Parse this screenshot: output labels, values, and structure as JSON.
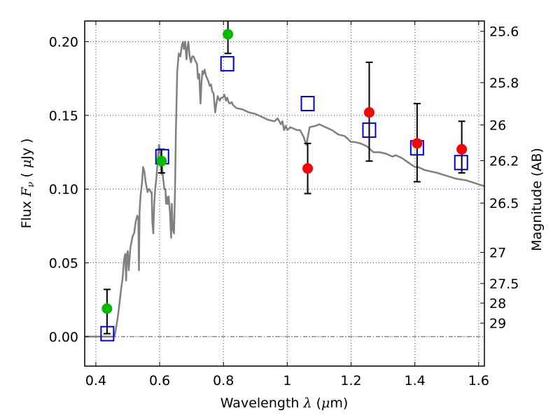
{
  "chart_data": {
    "type": "scatter",
    "title": "",
    "xlabel": "Wavelength  λ (μm)",
    "xlabel_parts": {
      "prefix": "Wavelength  ",
      "symbol": "λ",
      "suffix": " (",
      "mu": "μ",
      "unit": "m)"
    },
    "ylabel": "Flux  F_ν  ( μJy )",
    "ylabel_parts": {
      "prefix": "Flux  ",
      "symbol": "F",
      "sub": "ν",
      "open": "  ( ",
      "mu": "μ",
      "unit": "Jy )"
    },
    "y2label": "Magnitude (AB)",
    "xlim": [
      0.365,
      1.618
    ],
    "ylim": [
      -0.02,
      0.214
    ],
    "grid": true,
    "x_ticks": [
      {
        "value": 0.4,
        "label": "0.4"
      },
      {
        "value": 0.6,
        "label": "0.6"
      },
      {
        "value": 0.8,
        "label": "0.8"
      },
      {
        "value": 1.0,
        "label": "1"
      },
      {
        "value": 1.2,
        "label": "1.2"
      },
      {
        "value": 1.4,
        "label": "1.4"
      },
      {
        "value": 1.6,
        "label": "1.6"
      }
    ],
    "y_ticks": [
      {
        "value": 0.0,
        "label": "0.00"
      },
      {
        "value": 0.05,
        "label": "0.05"
      },
      {
        "value": 0.1,
        "label": "0.10"
      },
      {
        "value": 0.15,
        "label": "0.15"
      },
      {
        "value": 0.2,
        "label": "0.20"
      }
    ],
    "y2_ticks": [
      {
        "flux": 0.207,
        "label": "25.6"
      },
      {
        "flux": 0.1722,
        "label": "25.8"
      },
      {
        "flux": 0.1435,
        "label": "26"
      },
      {
        "flux": 0.1193,
        "label": "26.2"
      },
      {
        "flux": 0.0905,
        "label": "26.5"
      },
      {
        "flux": 0.0571,
        "label": "27"
      },
      {
        "flux": 0.036,
        "label": "27.5"
      },
      {
        "flux": 0.0227,
        "label": "28"
      },
      {
        "flux": 0.0091,
        "label": "29"
      }
    ],
    "zero_line": 0.0,
    "series": [
      {
        "name": "Model spectrum",
        "kind": "line",
        "color": "#808080",
        "points": [
          [
            0.365,
            0.0
          ],
          [
            0.45,
            0.0
          ],
          [
            0.458,
            0.0
          ],
          [
            0.462,
            0.004
          ],
          [
            0.47,
            0.015
          ],
          [
            0.478,
            0.03
          ],
          [
            0.484,
            0.04
          ],
          [
            0.488,
            0.052
          ],
          [
            0.492,
            0.056
          ],
          [
            0.495,
            0.038
          ],
          [
            0.497,
            0.055
          ],
          [
            0.5,
            0.058
          ],
          [
            0.503,
            0.045
          ],
          [
            0.508,
            0.06
          ],
          [
            0.515,
            0.068
          ],
          [
            0.52,
            0.07
          ],
          [
            0.525,
            0.078
          ],
          [
            0.53,
            0.082
          ],
          [
            0.533,
            0.08
          ],
          [
            0.535,
            0.045
          ],
          [
            0.537,
            0.085
          ],
          [
            0.54,
            0.095
          ],
          [
            0.545,
            0.105
          ],
          [
            0.548,
            0.115
          ],
          [
            0.552,
            0.112
          ],
          [
            0.556,
            0.105
          ],
          [
            0.56,
            0.1
          ],
          [
            0.562,
            0.098
          ],
          [
            0.565,
            0.1
          ],
          [
            0.568,
            0.1
          ],
          [
            0.572,
            0.098
          ],
          [
            0.575,
            0.098
          ],
          [
            0.577,
            0.078
          ],
          [
            0.58,
            0.07
          ],
          [
            0.583,
            0.09
          ],
          [
            0.586,
            0.1
          ],
          [
            0.59,
            0.108
          ],
          [
            0.594,
            0.12
          ],
          [
            0.598,
            0.13
          ],
          [
            0.602,
            0.125
          ],
          [
            0.606,
            0.11
          ],
          [
            0.608,
            0.115
          ],
          [
            0.611,
            0.107
          ],
          [
            0.615,
            0.1
          ],
          [
            0.618,
            0.1
          ],
          [
            0.62,
            0.09
          ],
          [
            0.622,
            0.095
          ],
          [
            0.625,
            0.09
          ],
          [
            0.628,
            0.095
          ],
          [
            0.632,
            0.085
          ],
          [
            0.636,
            0.067
          ],
          [
            0.638,
            0.09
          ],
          [
            0.641,
            0.073
          ],
          [
            0.645,
            0.07
          ],
          [
            0.648,
            0.098
          ],
          [
            0.651,
            0.14
          ],
          [
            0.655,
            0.18
          ],
          [
            0.66,
            0.192
          ],
          [
            0.665,
            0.19
          ],
          [
            0.67,
            0.198
          ],
          [
            0.673,
            0.2
          ],
          [
            0.676,
            0.195
          ],
          [
            0.68,
            0.2
          ],
          [
            0.684,
            0.188
          ],
          [
            0.687,
            0.196
          ],
          [
            0.69,
            0.2
          ],
          [
            0.694,
            0.19
          ],
          [
            0.698,
            0.186
          ],
          [
            0.702,
            0.19
          ],
          [
            0.706,
            0.19
          ],
          [
            0.71,
            0.188
          ],
          [
            0.714,
            0.186
          ],
          [
            0.717,
            0.185
          ],
          [
            0.72,
            0.175
          ],
          [
            0.724,
            0.178
          ],
          [
            0.728,
            0.158
          ],
          [
            0.731,
            0.172
          ],
          [
            0.734,
            0.18
          ],
          [
            0.737,
            0.178
          ],
          [
            0.741,
            0.181
          ],
          [
            0.745,
            0.177
          ],
          [
            0.749,
            0.175
          ],
          [
            0.753,
            0.173
          ],
          [
            0.757,
            0.17
          ],
          [
            0.761,
            0.171
          ],
          [
            0.765,
            0.166
          ],
          [
            0.769,
            0.165
          ],
          [
            0.774,
            0.152
          ],
          [
            0.778,
            0.158
          ],
          [
            0.782,
            0.163
          ],
          [
            0.788,
            0.16
          ],
          [
            0.793,
            0.162
          ],
          [
            0.798,
            0.162
          ],
          [
            0.803,
            0.164
          ],
          [
            0.808,
            0.16
          ],
          [
            0.812,
            0.162
          ],
          [
            0.816,
            0.159
          ],
          [
            0.82,
            0.158
          ],
          [
            0.826,
            0.159
          ],
          [
            0.83,
            0.157
          ]
        ]
      },
      {
        "name": "Observed (green)",
        "kind": "points",
        "color": "#00bb00",
        "points": [
          {
            "x": 0.435,
            "y": 0.019,
            "err_lo": 0.002,
            "err_hi": 0.032
          },
          {
            "x": 0.606,
            "y": 0.119,
            "err_lo": 0.111,
            "err_hi": 0.127
          },
          {
            "x": 0.814,
            "y": 0.205,
            "err_lo": 0.192,
            "err_hi": 0.214
          }
        ]
      },
      {
        "name": "Observed (red)",
        "kind": "points",
        "color": "#ff0000",
        "points": [
          {
            "x": 1.064,
            "y": 0.114,
            "err_lo": 0.097,
            "err_hi": 0.131
          },
          {
            "x": 1.257,
            "y": 0.152,
            "err_lo": 0.119,
            "err_hi": 0.186
          },
          {
            "x": 1.407,
            "y": 0.131,
            "err_lo": 0.105,
            "err_hi": 0.158
          },
          {
            "x": 1.547,
            "y": 0.127,
            "err_lo": 0.111,
            "err_hi": 0.146
          }
        ]
      },
      {
        "name": "Model photometry",
        "kind": "open-squares",
        "color": "#0000dd",
        "points": [
          {
            "x": 0.436,
            "y": 0.002
          },
          {
            "x": 0.608,
            "y": 0.122
          },
          {
            "x": 0.812,
            "y": 0.185
          },
          {
            "x": 1.064,
            "y": 0.158
          },
          {
            "x": 1.257,
            "y": 0.14
          },
          {
            "x": 1.407,
            "y": 0.128
          },
          {
            "x": 1.545,
            "y": 0.118
          }
        ]
      }
    ]
  }
}
